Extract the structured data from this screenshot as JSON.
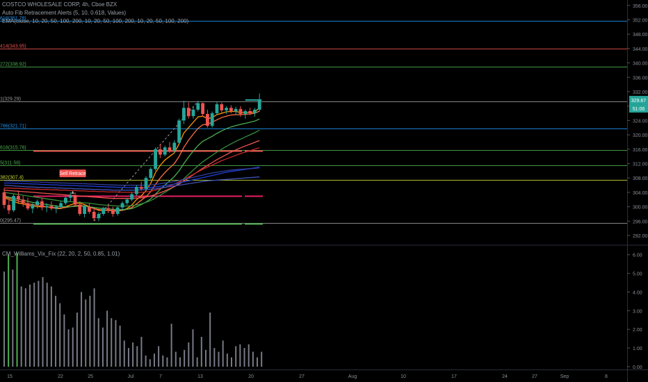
{
  "header": {
    "symbol_line": "COSTCO WHOLESALE CORP, 4h, Cboe BZX",
    "indicator_line": "Auto Fib Retracement Alerts (5, 10, 0.618, Values)",
    "ma_line": "EMA(close, 10, 20, 50, 100, 200, 10, 20, 50, 100, 200, 10, 20, 50, 100, 200)"
  },
  "price_badges": {
    "last_price": "329.67",
    "countdown": "51:06",
    "badge_color": "#26a69a"
  },
  "annotation": {
    "label": "Sell Retrace",
    "color": "#ef5350"
  },
  "indicator": {
    "title": "CM_Williams_Vix_Fix (22, 20, 2, 50, 0.85, 1.01)"
  },
  "chart_data": [
    {
      "type": "candlestick",
      "title": "COSTCO WHOLESALE CORP, 4h, Cboe BZX",
      "x_ticks": [
        "15",
        "22",
        "25",
        "Jul",
        "7",
        "13",
        "20",
        "27",
        "Aug",
        "10",
        "17",
        "24",
        "27",
        "Sep",
        "8"
      ],
      "y_ticks": [
        292.0,
        296.0,
        300.0,
        304.0,
        308.0,
        312.0,
        316.0,
        320.0,
        324.0,
        328.0,
        332.0,
        336.0,
        340.0,
        344.0,
        348.0,
        352.0,
        356.0
      ],
      "ylim": [
        289.5,
        357.5
      ],
      "colors": {
        "up": "#26a69a",
        "down": "#ef5350"
      },
      "candles": [
        [
          304.0,
          305.2,
          299.5,
          300.5
        ],
        [
          300.5,
          302.0,
          298.0,
          299.0
        ],
        [
          299.0,
          303.5,
          298.5,
          303.0
        ],
        [
          303.0,
          304.5,
          301.0,
          302.0
        ],
        [
          302.0,
          303.0,
          300.0,
          301.0
        ],
        [
          301.0,
          302.5,
          299.0,
          299.5
        ],
        [
          299.5,
          301.0,
          298.2,
          300.5
        ],
        [
          300.5,
          302.0,
          299.5,
          301.5
        ],
        [
          301.5,
          302.5,
          299.0,
          299.8
        ],
        [
          299.8,
          301.0,
          298.5,
          300.2
        ],
        [
          300.2,
          301.5,
          299.0,
          299.5
        ],
        [
          299.5,
          300.5,
          298.2,
          300.0
        ],
        [
          300.0,
          301.5,
          299.5,
          301.0
        ],
        [
          301.0,
          302.8,
          300.5,
          302.5
        ],
        [
          302.5,
          304.0,
          301.5,
          303.2
        ],
        [
          303.2,
          304.0,
          300.0,
          300.6
        ],
        [
          300.6,
          301.5,
          297.5,
          298.0
        ],
        [
          298.0,
          300.5,
          297.0,
          300.0
        ],
        [
          300.0,
          301.0,
          298.0,
          298.6
        ],
        [
          298.6,
          299.5,
          296.0,
          296.8
        ],
        [
          296.8,
          298.5,
          296.0,
          298.0
        ],
        [
          298.0,
          300.0,
          297.5,
          299.6
        ],
        [
          299.6,
          300.5,
          298.2,
          299.2
        ],
        [
          299.2,
          300.0,
          297.2,
          298.0
        ],
        [
          298.0,
          300.0,
          297.5,
          299.8
        ],
        [
          299.8,
          301.5,
          299.0,
          301.0
        ],
        [
          301.0,
          302.5,
          300.5,
          302.0
        ],
        [
          302.0,
          304.0,
          301.5,
          303.5
        ],
        [
          303.5,
          306.0,
          303.0,
          305.5
        ],
        [
          305.5,
          307.0,
          304.5,
          305.0
        ],
        [
          305.0,
          308.5,
          304.5,
          308.0
        ],
        [
          308.0,
          311.0,
          307.5,
          310.5
        ],
        [
          310.5,
          316.5,
          310.0,
          316.0
        ],
        [
          316.0,
          317.5,
          313.5,
          314.5
        ],
        [
          314.5,
          317.0,
          314.0,
          316.5
        ],
        [
          316.5,
          318.0,
          315.0,
          315.6
        ],
        [
          315.6,
          318.5,
          315.0,
          317.8
        ],
        [
          317.8,
          324.5,
          317.5,
          324.0
        ],
        [
          324.0,
          329.5,
          323.0,
          327.5
        ],
        [
          327.5,
          329.0,
          324.5,
          325.2
        ],
        [
          325.2,
          328.0,
          324.5,
          327.0
        ],
        [
          327.0,
          329.5,
          326.5,
          328.8
        ],
        [
          328.8,
          329.0,
          325.0,
          325.8
        ],
        [
          325.8,
          327.0,
          322.0,
          322.5
        ],
        [
          322.5,
          326.5,
          322.0,
          326.0
        ],
        [
          326.0,
          329.2,
          325.5,
          328.5
        ],
        [
          328.5,
          329.0,
          326.0,
          326.8
        ],
        [
          326.8,
          328.0,
          325.8,
          327.5
        ],
        [
          327.5,
          328.2,
          326.0,
          326.5
        ],
        [
          326.5,
          327.8,
          325.5,
          327.2
        ],
        [
          327.2,
          328.0,
          325.0,
          325.8
        ],
        [
          325.8,
          327.0,
          324.5,
          326.6
        ],
        [
          326.6,
          327.5,
          325.5,
          326.0
        ],
        [
          326.0,
          327.5,
          325.0,
          327.0
        ],
        [
          327.0,
          331.5,
          326.5,
          329.67
        ]
      ],
      "fib_levels": [
        {
          "label": "618(351.78)",
          "value": 351.78,
          "color": "#2196f3"
        },
        {
          "label": "414(343.95)",
          "value": 343.95,
          "color": "#ef5350"
        },
        {
          "label": "272(338.92)",
          "value": 338.92,
          "color": "#4caf50"
        },
        {
          "label": "1(329.29)",
          "value": 329.29,
          "color": "#9e9e9e"
        },
        {
          "label": "786(321.71)",
          "value": 321.71,
          "color": "#2196f3"
        },
        {
          "label": "618(315.76)",
          "value": 315.76,
          "color": "#4caf50"
        },
        {
          "label": "5(311.58)",
          "value": 311.58,
          "color": "#4caf50"
        },
        {
          "label": "382(307.4)",
          "value": 307.4,
          "color": "#cddc39"
        },
        {
          "label": "0(295.47)",
          "value": 295.47,
          "color": "#9e9e9e"
        }
      ],
      "level_segments": [
        {
          "value": 315.6,
          "color": "#ef5350"
        },
        {
          "value": 303.0,
          "color": "#e91e63"
        },
        {
          "value": 295.3,
          "color": "#4caf50"
        }
      ],
      "ema_series": [
        {
          "color": "#ff9800",
          "values": [
            302.5,
            302.0,
            301.5,
            301.0,
            300.8,
            300.4,
            300.2,
            300.0,
            300.0,
            300.0,
            299.8,
            299.5,
            299.5,
            300.0,
            300.5,
            301.0,
            301.0,
            300.6,
            300.0,
            299.5,
            299.0,
            299.0,
            299.0,
            298.8,
            298.8,
            299.0,
            299.5,
            300.5,
            302.0,
            303.0,
            304.5,
            306.5,
            309.5,
            311.5,
            313.0,
            314.0,
            315.0,
            317.5,
            320.5,
            322.0,
            323.5,
            325.0,
            325.2,
            324.5,
            324.8,
            325.6,
            326.0,
            326.4,
            326.5,
            326.5,
            326.2,
            326.2,
            326.2,
            326.4,
            327.5
          ]
        },
        {
          "color": "#ff7043",
          "values": [
            302.8,
            302.4,
            302.0,
            301.6,
            301.2,
            300.8,
            300.6,
            300.4,
            300.2,
            300.0,
            299.8,
            299.7,
            299.6,
            299.8,
            300.0,
            300.3,
            300.4,
            300.2,
            299.9,
            299.5,
            299.2,
            299.1,
            299.0,
            298.9,
            298.9,
            299.0,
            299.3,
            299.8,
            300.8,
            301.8,
            302.8,
            304.2,
            306.2,
            308.0,
            309.5,
            310.8,
            312.0,
            314.0,
            316.5,
            318.5,
            320.2,
            321.8,
            322.8,
            323.0,
            323.5,
            324.2,
            324.8,
            325.2,
            325.5,
            325.6,
            325.6,
            325.7,
            325.8,
            326.0,
            326.6
          ]
        },
        {
          "color": "#4caf50",
          "values": [
            303.0,
            302.7,
            302.4,
            302.1,
            301.8,
            301.5,
            301.2,
            301.0,
            300.8,
            300.6,
            300.4,
            300.2,
            300.0,
            300.0,
            300.0,
            300.1,
            300.2,
            300.1,
            300.0,
            299.8,
            299.6,
            299.5,
            299.4,
            299.3,
            299.2,
            299.2,
            299.3,
            299.5,
            300.0,
            300.6,
            301.3,
            302.2,
            303.5,
            304.8,
            306.0,
            307.2,
            308.4,
            310.0,
            312.0,
            313.8,
            315.5,
            317.0,
            318.2,
            318.9,
            319.6,
            320.4,
            321.1,
            321.7,
            322.2,
            322.6,
            322.9,
            323.2,
            323.5,
            323.8,
            324.4
          ]
        },
        {
          "color": "#388e3c",
          "values": [
            304.0,
            303.8,
            303.6,
            303.4,
            303.2,
            303.0,
            302.8,
            302.6,
            302.4,
            302.2,
            302.0,
            301.8,
            301.6,
            301.5,
            301.4,
            301.3,
            301.2,
            301.1,
            301.0,
            300.8,
            300.6,
            300.5,
            300.4,
            300.3,
            300.2,
            300.2,
            300.2,
            300.3,
            300.5,
            300.8,
            301.2,
            301.7,
            302.4,
            303.2,
            304.0,
            304.8,
            305.6,
            306.6,
            307.8,
            309.0,
            310.2,
            311.4,
            312.5,
            313.4,
            314.3,
            315.2,
            316.0,
            316.8,
            317.5,
            318.2,
            318.8,
            319.4,
            320.0,
            320.6,
            321.3
          ]
        },
        {
          "color": "#ef5350",
          "values": [
            304.6,
            304.5,
            304.4,
            304.3,
            304.2,
            304.1,
            304.0,
            303.9,
            303.8,
            303.7,
            303.6,
            303.5,
            303.4,
            303.3,
            303.2,
            303.1,
            303.0,
            302.9,
            302.8,
            302.7,
            302.6,
            302.5,
            302.4,
            302.3,
            302.3,
            302.3,
            302.3,
            302.3,
            302.4,
            302.5,
            302.7,
            303.0,
            303.4,
            303.9,
            304.4,
            305.0,
            305.6,
            306.3,
            307.1,
            308.0,
            308.9,
            309.8,
            310.7,
            311.5,
            312.3,
            313.1,
            313.8,
            314.5,
            315.2,
            315.8,
            316.4,
            316.9,
            317.4,
            317.9,
            318.4
          ]
        },
        {
          "color": "#c62828",
          "values": [
            305.2,
            305.2,
            305.1,
            305.1,
            305.0,
            305.0,
            304.9,
            304.9,
            304.8,
            304.8,
            304.7,
            304.7,
            304.6,
            304.6,
            304.5,
            304.5,
            304.4,
            304.4,
            304.3,
            304.3,
            304.2,
            304.2,
            304.1,
            304.1,
            304.1,
            304.0,
            304.0,
            304.0,
            304.0,
            304.0,
            304.1,
            304.3,
            304.6,
            305.0,
            305.4,
            305.8,
            306.3,
            306.9,
            307.6,
            308.3,
            309.0,
            309.7,
            310.4,
            311.0,
            311.6,
            312.2,
            312.8,
            313.3,
            313.8,
            314.3,
            314.8,
            315.2,
            315.6,
            316.0,
            316.4
          ]
        },
        {
          "color": "#1e3fd8",
          "values": [
            306.6,
            306.6,
            306.5,
            306.5,
            306.4,
            306.4,
            306.3,
            306.3,
            306.2,
            306.2,
            306.1,
            306.1,
            306.0,
            306.0,
            305.9,
            305.9,
            305.8,
            305.8,
            305.7,
            305.7,
            305.6,
            305.6,
            305.5,
            305.5,
            305.4,
            305.4,
            305.3,
            305.3,
            305.3,
            305.3,
            305.3,
            305.4,
            305.5,
            305.7,
            305.9,
            306.1,
            306.3,
            306.6,
            306.9,
            307.2,
            307.5,
            307.8,
            308.1,
            308.4,
            308.7,
            309.0,
            309.3,
            309.6,
            309.8,
            310.0,
            310.2,
            310.4,
            310.6,
            310.8,
            311.0
          ]
        },
        {
          "color": "#303f9f",
          "values": [
            307.2,
            307.2,
            307.1,
            307.1,
            307.0,
            307.0,
            306.9,
            306.9,
            306.8,
            306.8,
            306.7,
            306.7,
            306.6,
            306.6,
            306.5,
            306.5,
            306.4,
            306.4,
            306.3,
            306.3,
            306.2,
            306.2,
            306.1,
            306.1,
            306.0,
            306.0,
            306.0,
            306.0,
            306.0,
            306.0,
            306.0,
            306.1,
            306.2,
            306.4,
            306.6,
            306.8,
            307.0,
            307.3,
            307.6,
            307.9,
            308.2,
            308.5,
            308.8,
            309.1,
            309.4,
            309.6,
            309.8,
            310.0,
            310.2,
            310.3,
            310.4,
            310.5,
            310.6,
            310.7,
            310.8
          ]
        },
        {
          "color": "#3f51b5",
          "values": [
            306.0,
            305.9,
            305.8,
            305.7,
            305.6,
            305.5,
            305.5,
            305.4,
            305.4,
            305.3,
            305.3,
            305.2,
            305.2,
            305.1,
            305.1,
            305.0,
            305.0,
            304.9,
            304.9,
            304.8,
            304.8,
            304.7,
            304.7,
            304.6,
            304.6,
            304.6,
            304.6,
            304.6,
            304.6,
            304.7,
            304.8,
            304.9,
            305.0,
            305.2,
            305.4,
            305.6,
            305.8,
            306.0,
            306.2,
            306.4,
            306.6,
            306.8,
            307.0,
            307.2,
            307.3,
            307.4,
            307.5,
            307.6,
            307.7,
            307.8,
            307.9,
            308.0,
            308.1,
            308.2,
            308.3
          ]
        }
      ]
    },
    {
      "type": "bar",
      "title": "CM_Williams_Vix_Fix (22, 20, 2, 50, 0.85, 1.01)",
      "y_ticks": [
        0.0,
        1.0,
        2.0,
        3.0,
        4.0,
        5.0,
        6.0
      ],
      "y_tick_labels": [
        "0.00",
        "1.00",
        "2.00",
        "3.00",
        "4.00",
        "5.00",
        "6.00"
      ],
      "ylim": [
        -0.15,
        6.4
      ],
      "colors": {
        "high": "#4caf50",
        "normal": "#787b86"
      },
      "values": [
        5.1,
        6.0,
        5.2,
        6.1,
        4.3,
        4.2,
        4.4,
        4.5,
        4.6,
        4.8,
        4.5,
        4.3,
        3.8,
        3.4,
        2.8,
        2.0,
        2.1,
        2.9,
        4.0,
        3.6,
        3.8,
        4.2,
        2.6,
        2.1,
        3.0,
        2.6,
        2.5,
        2.2,
        1.4,
        1.0,
        1.3,
        1.1,
        1.6,
        0.6,
        0.4,
        0.7,
        1.1,
        0.6,
        0.5,
        2.3,
        0.8,
        0.5,
        0.9,
        1.3,
        2.0,
        0.5,
        1.6,
        0.9,
        2.9,
        1.0,
        0.8,
        1.4,
        0.7,
        0.5,
        1.1,
        1.2,
        1.0,
        1.2,
        0.8,
        0.5,
        0.8
      ],
      "highlight": [
        false,
        true,
        false,
        true,
        false,
        false,
        false,
        false,
        false,
        false,
        false,
        false,
        false,
        false,
        false,
        false,
        false,
        false,
        false,
        false,
        false,
        false,
        false,
        false,
        false,
        false,
        false,
        false,
        false,
        false,
        false,
        false,
        false,
        false,
        false,
        false,
        false,
        false,
        false,
        false,
        false,
        false,
        false,
        false,
        false,
        false,
        false,
        false,
        false,
        false,
        false,
        false,
        false,
        false,
        false,
        false,
        false,
        false,
        false,
        false,
        false
      ]
    }
  ]
}
